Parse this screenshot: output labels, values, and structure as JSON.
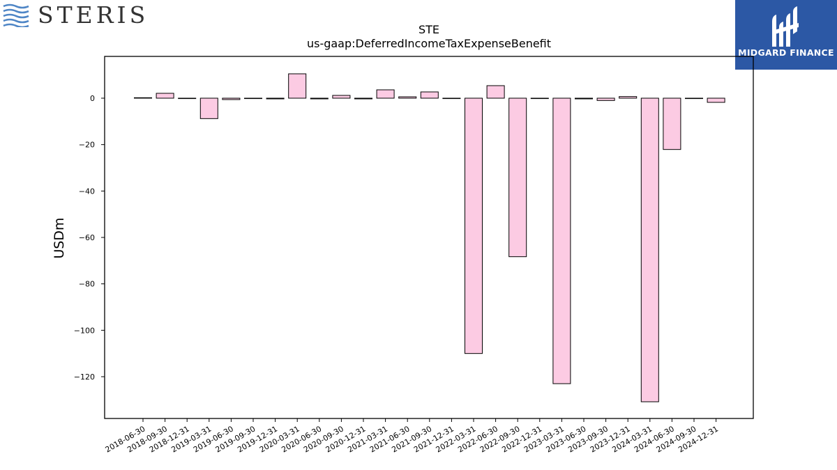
{
  "branding": {
    "left_logo_text": "STERIS",
    "right_logo_text": "MIDGARD FINANCE",
    "right_logo_bg": "#2c58a5",
    "left_logo_wave_color": "#4f86c6"
  },
  "chart_data": {
    "type": "bar",
    "title": "STE",
    "subtitle": "us-gaap:DeferredIncomeTaxExpenseBenefit",
    "ylabel": "USDm",
    "xlabel": "",
    "ylim": [
      -138,
      18
    ],
    "yticks": [
      0,
      -20,
      -40,
      -60,
      -80,
      -100,
      -120
    ],
    "grid": false,
    "bar_fill": "#fccbe3",
    "bar_stroke": "#000000",
    "categories": [
      "2018-06-30",
      "2018-09-30",
      "2018-12-31",
      "2019-03-31",
      "2019-06-30",
      "2019-09-30",
      "2019-12-31",
      "2020-03-31",
      "2020-06-30",
      "2020-09-30",
      "2020-12-31",
      "2021-03-31",
      "2021-06-30",
      "2021-09-30",
      "2021-12-31",
      "2022-03-31",
      "2022-06-30",
      "2022-09-30",
      "2022-12-31",
      "2023-03-31",
      "2023-06-30",
      "2023-09-30",
      "2023-12-31",
      "2024-03-31",
      "2024-06-30",
      "2024-09-30",
      "2024-12-31"
    ],
    "values": [
      0.2,
      2.1,
      0,
      -8.8,
      -0.6,
      -0.1,
      -0.3,
      10.5,
      -0.3,
      1.2,
      -0.3,
      3.6,
      0.6,
      2.7,
      -0.1,
      -110.0,
      5.4,
      -68.3,
      0,
      -123.0,
      -0.3,
      -1.0,
      0.7,
      -130.8,
      -22.1,
      -0.1,
      -1.8
    ]
  }
}
